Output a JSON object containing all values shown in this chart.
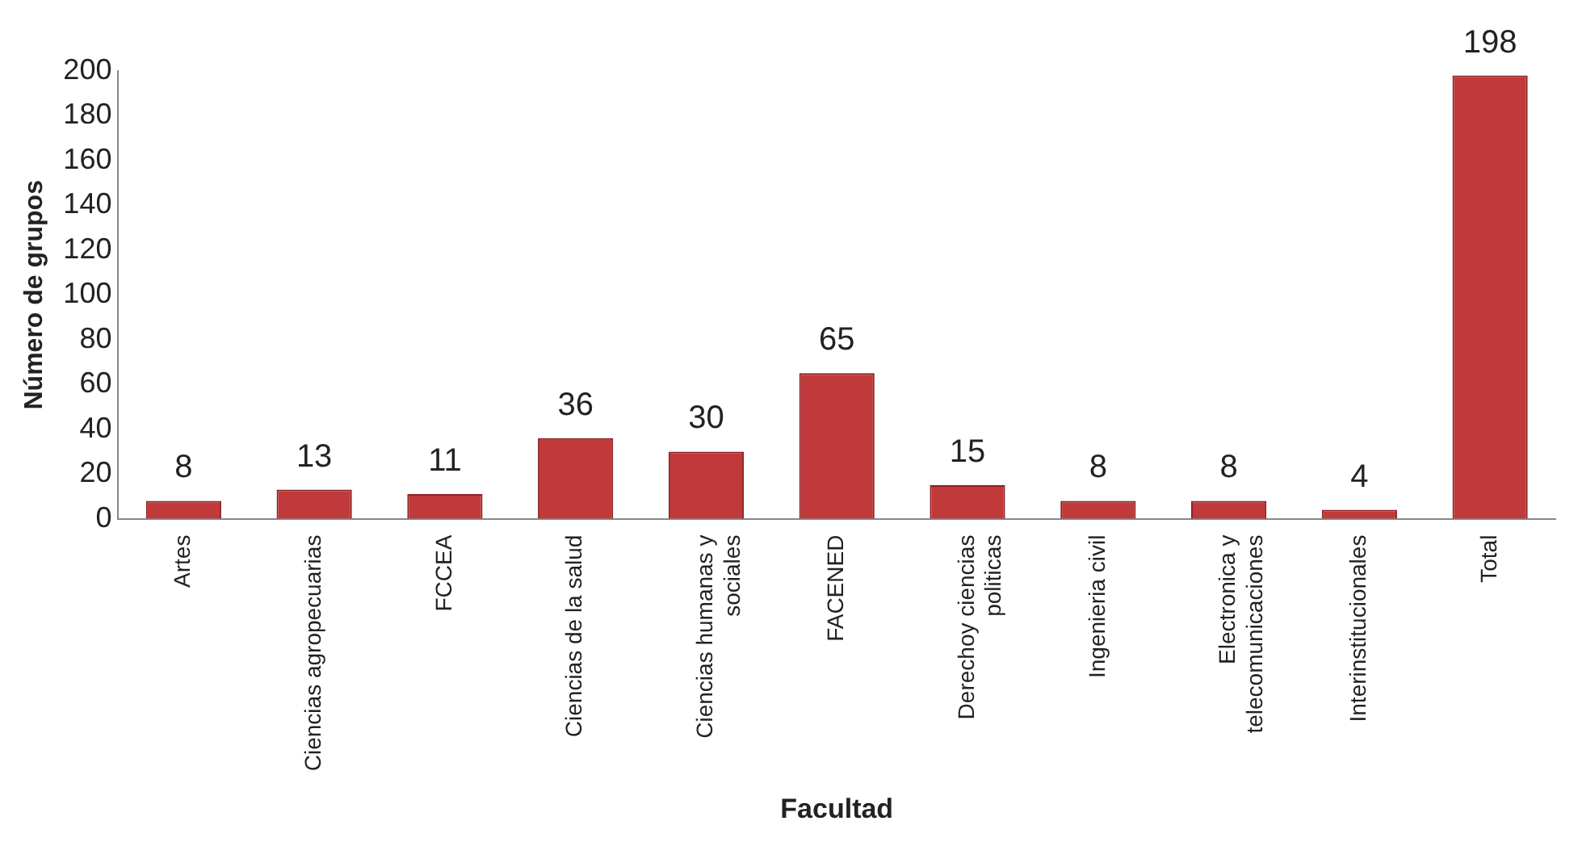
{
  "chart_data": {
    "type": "bar",
    "xlabel": "Facultad",
    "ylabel": "Número de grupos",
    "categories": [
      "Artes",
      "Ciencias agropecuarias",
      "FCCEA",
      "Ciencias de la salud",
      "Ciencias humanas y sociales",
      "FACENED",
      "Derechoy ciencias politicas",
      "Ingenieria civil",
      "Electronica y telecomunicaciones",
      "Interinstitucionales",
      "Total"
    ],
    "values": [
      8,
      13,
      11,
      36,
      30,
      65,
      15,
      8,
      8,
      4,
      198
    ],
    "color": "#c0393b",
    "ylim": [
      0,
      200
    ],
    "yticks": [
      0,
      20,
      40,
      60,
      80,
      100,
      120,
      140,
      160,
      180,
      200
    ],
    "grid": false,
    "data_labels": true,
    "legend": false
  }
}
